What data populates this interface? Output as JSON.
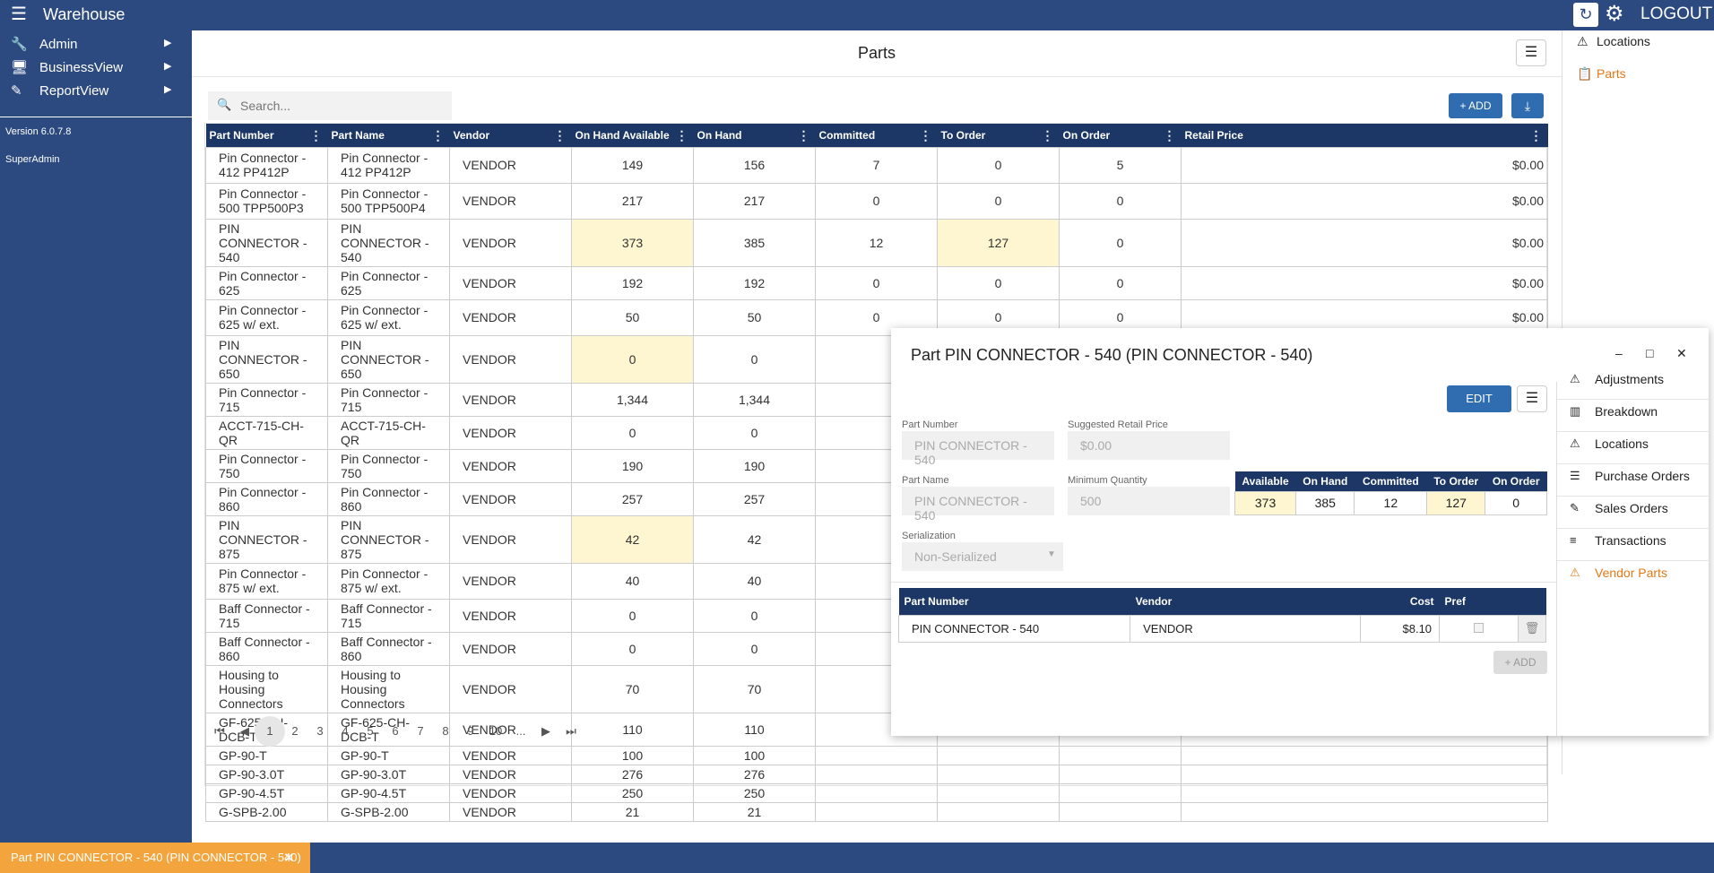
{
  "app": {
    "title": "Warehouse",
    "logout": "LOGOUT"
  },
  "sidebar": {
    "items": [
      {
        "label": "Admin",
        "icon": "wrench-icon"
      },
      {
        "label": "BusinessView",
        "icon": "monitor-icon"
      },
      {
        "label": "ReportView",
        "icon": "edit-icon"
      }
    ],
    "version": "Version 6.0.7.8",
    "user": "SuperAdmin"
  },
  "main": {
    "title": "Parts",
    "search_placeholder": "Search...",
    "add_label": "ADD",
    "columns": [
      "Part Number",
      "Part Name",
      "Vendor",
      "On Hand Available",
      "On Hand",
      "Committed",
      "To Order",
      "On Order",
      "Retail Price"
    ],
    "rows": [
      {
        "part_number": "Pin Connector - 412 PP412P",
        "part_name": "Pin Connector - 412 PP412P",
        "vendor": "VENDOR",
        "available": "149",
        "on_hand": "156",
        "committed": "7",
        "to_order": "0",
        "on_order": "5",
        "price": "$0.00"
      },
      {
        "part_number": "Pin Connector - 500 TPP500P3",
        "part_name": "Pin Connector - 500 TPP500P4",
        "vendor": "VENDOR",
        "available": "217",
        "on_hand": "217",
        "committed": "0",
        "to_order": "0",
        "on_order": "0",
        "price": "$0.00"
      },
      {
        "part_number": "PIN CONNECTOR - 540",
        "part_name": "PIN CONNECTOR - 540",
        "vendor": "VENDOR",
        "available": "373",
        "on_hand": "385",
        "committed": "12",
        "to_order": "127",
        "on_order": "0",
        "price": "$0.00"
      },
      {
        "part_number": "Pin Connector - 625",
        "part_name": "Pin Connector - 625",
        "vendor": "VENDOR",
        "available": "192",
        "on_hand": "192",
        "committed": "0",
        "to_order": "0",
        "on_order": "0",
        "price": "$0.00"
      },
      {
        "part_number": "Pin Connector - 625 w/ ext.",
        "part_name": "Pin Connector - 625 w/ ext.",
        "vendor": "VENDOR",
        "available": "50",
        "on_hand": "50",
        "committed": "0",
        "to_order": "0",
        "on_order": "0",
        "price": "$0.00"
      },
      {
        "part_number": "PIN CONNECTOR - 650",
        "part_name": "PIN CONNECTOR - 650",
        "vendor": "VENDOR",
        "available": "0",
        "on_hand": "0",
        "committed": "",
        "to_order": "",
        "on_order": "",
        "price": ""
      },
      {
        "part_number": "Pin Connector - 715",
        "part_name": "Pin Connector - 715",
        "vendor": "VENDOR",
        "available": "1,344",
        "on_hand": "1,344",
        "committed": "",
        "to_order": "",
        "on_order": "",
        "price": ""
      },
      {
        "part_number": "ACCT-715-CH-QR",
        "part_name": "ACCT-715-CH-QR",
        "vendor": "VENDOR",
        "available": "0",
        "on_hand": "0",
        "committed": "",
        "to_order": "",
        "on_order": "",
        "price": ""
      },
      {
        "part_number": "Pin Connector - 750",
        "part_name": "Pin Connector - 750",
        "vendor": "VENDOR",
        "available": "190",
        "on_hand": "190",
        "committed": "",
        "to_order": "",
        "on_order": "",
        "price": ""
      },
      {
        "part_number": "Pin Connector - 860",
        "part_name": "Pin Connector - 860",
        "vendor": "VENDOR",
        "available": "257",
        "on_hand": "257",
        "committed": "",
        "to_order": "",
        "on_order": "",
        "price": ""
      },
      {
        "part_number": "PIN CONNECTOR - 875",
        "part_name": "PIN CONNECTOR - 875",
        "vendor": "VENDOR",
        "available": "42",
        "on_hand": "42",
        "committed": "",
        "to_order": "",
        "on_order": "",
        "price": ""
      },
      {
        "part_number": "Pin Connector - 875 w/ ext.",
        "part_name": "Pin Connector - 875 w/ ext.",
        "vendor": "VENDOR",
        "available": "40",
        "on_hand": "40",
        "committed": "",
        "to_order": "",
        "on_order": "",
        "price": ""
      },
      {
        "part_number": "Baff Connector - 715",
        "part_name": "Baff Connector - 715",
        "vendor": "VENDOR",
        "available": "0",
        "on_hand": "0",
        "committed": "",
        "to_order": "",
        "on_order": "",
        "price": ""
      },
      {
        "part_number": "Baff Connector - 860",
        "part_name": "Baff Connector - 860",
        "vendor": "VENDOR",
        "available": "0",
        "on_hand": "0",
        "committed": "",
        "to_order": "",
        "on_order": "",
        "price": ""
      },
      {
        "part_number": "Housing to Housing Connectors",
        "part_name": "Housing to Housing Connectors",
        "vendor": "VENDOR",
        "available": "70",
        "on_hand": "70",
        "committed": "",
        "to_order": "",
        "on_order": "",
        "price": ""
      },
      {
        "part_number": "GF-625-CH-DCB-T",
        "part_name": "GF-625-CH-DCB-T",
        "vendor": "VENDOR",
        "available": "110",
        "on_hand": "110",
        "committed": "",
        "to_order": "",
        "on_order": "",
        "price": ""
      },
      {
        "part_number": "GP-90-T",
        "part_name": "GP-90-T",
        "vendor": "VENDOR",
        "available": "100",
        "on_hand": "100",
        "committed": "",
        "to_order": "",
        "on_order": "",
        "price": ""
      },
      {
        "part_number": "GP-90-3.0T",
        "part_name": "GP-90-3.0T",
        "vendor": "VENDOR",
        "available": "276",
        "on_hand": "276",
        "committed": "",
        "to_order": "",
        "on_order": "",
        "price": ""
      },
      {
        "part_number": "GP-90-4.5T",
        "part_name": "GP-90-4.5T",
        "vendor": "VENDOR",
        "available": "250",
        "on_hand": "250",
        "committed": "",
        "to_order": "",
        "on_order": "",
        "price": ""
      },
      {
        "part_number": "G-SPB-2.00",
        "part_name": "G-SPB-2.00",
        "vendor": "VENDOR",
        "available": "21",
        "on_hand": "21",
        "committed": "",
        "to_order": "",
        "on_order": "",
        "price": ""
      }
    ],
    "pages": [
      "1",
      "2",
      "3",
      "4",
      "5",
      "6",
      "7",
      "8",
      "9",
      "10",
      "..."
    ]
  },
  "right_panel": {
    "items": [
      {
        "label": "Locations",
        "icon": "warning-icon"
      },
      {
        "label": "Parts",
        "icon": "clipboard-icon"
      }
    ]
  },
  "dialog": {
    "title": "Part PIN CONNECTOR - 540 (PIN CONNECTOR - 540)",
    "edit_label": "EDIT",
    "fields": {
      "part_number_label": "Part Number",
      "part_number": "PIN CONNECTOR - 540",
      "retail_price_label": "Suggested Retail Price",
      "retail_price": "$0.00",
      "part_name_label": "Part Name",
      "part_name": "PIN CONNECTOR - 540",
      "min_qty_label": "Minimum Quantity",
      "min_qty": "500",
      "serialization_label": "Serialization",
      "serialization": "Non-Serialized"
    },
    "stock": {
      "headers": [
        "Available",
        "On Hand",
        "Committed",
        "To Order",
        "On Order"
      ],
      "values": [
        "373",
        "385",
        "12",
        "127",
        "0"
      ]
    },
    "vendors": {
      "headers": [
        "Part Number",
        "Vendor",
        "Cost",
        "Pref"
      ],
      "rows": [
        {
          "part_number": "PIN CONNECTOR - 540",
          "vendor": "VENDOR",
          "cost": "$8.10"
        }
      ]
    },
    "add_label": "ADD",
    "side_items": [
      {
        "label": "Adjustments",
        "icon": "warning-icon"
      },
      {
        "label": "Breakdown",
        "icon": "breakdown-icon"
      },
      {
        "label": "Locations",
        "icon": "warning-icon"
      },
      {
        "label": "Purchase Orders",
        "icon": "document-icon"
      },
      {
        "label": "Sales Orders",
        "icon": "edit-icon"
      },
      {
        "label": "Transactions",
        "icon": "list-icon"
      },
      {
        "label": "Vendor Parts",
        "icon": "warning-icon"
      }
    ]
  },
  "taskbar": {
    "label": "Part PIN CONNECTOR - 540 (PIN CONNECTOR - 540)"
  },
  "colors": {
    "primary": "#2c4a80",
    "header": "#1c3766",
    "accent": "#f3a43c",
    "highlight": "#fdf6d0",
    "button": "#2f6db0",
    "link_active": "#e67817"
  }
}
